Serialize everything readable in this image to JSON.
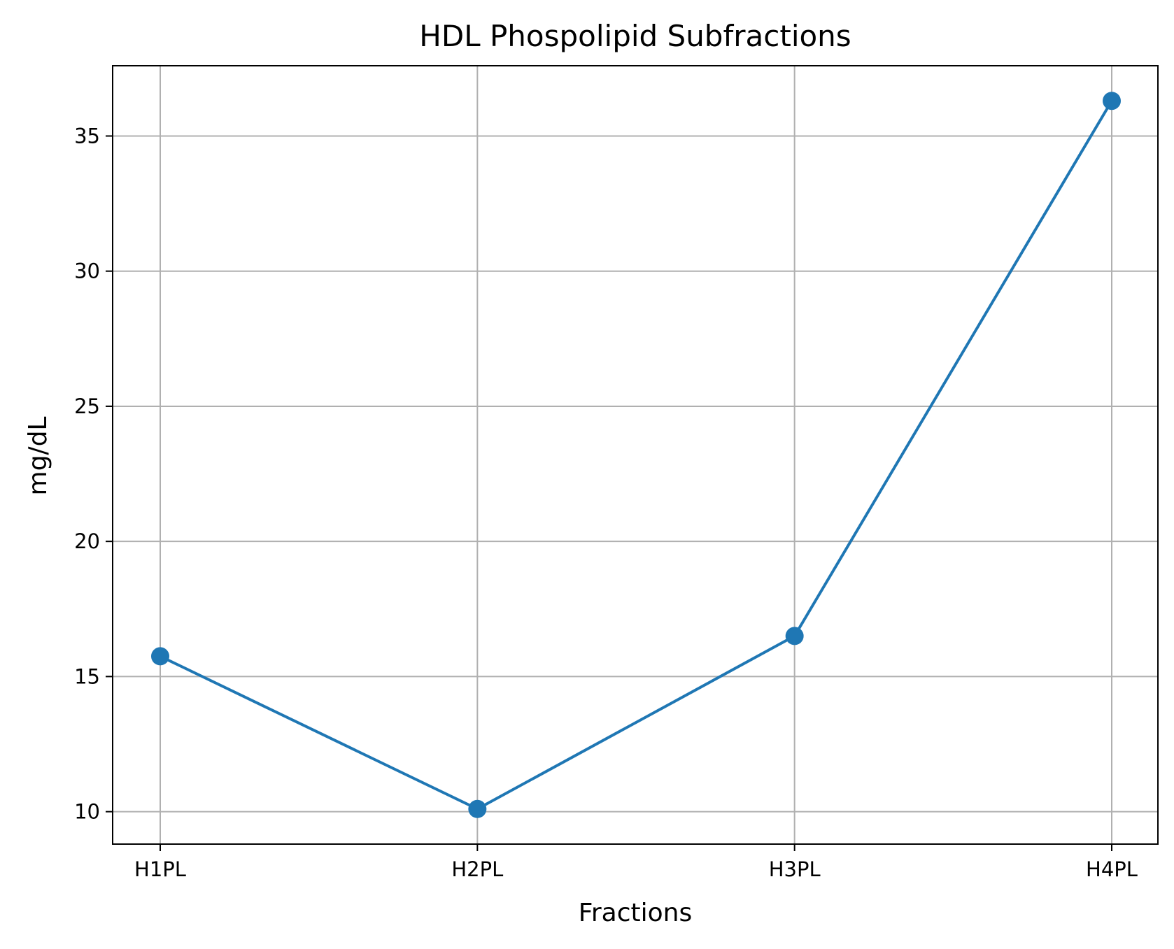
{
  "chart_data": {
    "type": "line",
    "title": "HDL Phospolipid Subfractions",
    "xlabel": "Fractions",
    "ylabel": "mg/dL",
    "categories": [
      "H1PL",
      "H2PL",
      "H3PL",
      "H4PL"
    ],
    "series": [
      {
        "values": [
          15.75,
          10.1,
          16.5,
          36.3
        ],
        "color": "#1f77b4",
        "marker": "circle"
      }
    ],
    "ylim": [
      8.8,
      37.6
    ],
    "yticks": [
      10,
      15,
      20,
      25,
      30,
      35
    ],
    "grid": true,
    "legend": "none"
  }
}
